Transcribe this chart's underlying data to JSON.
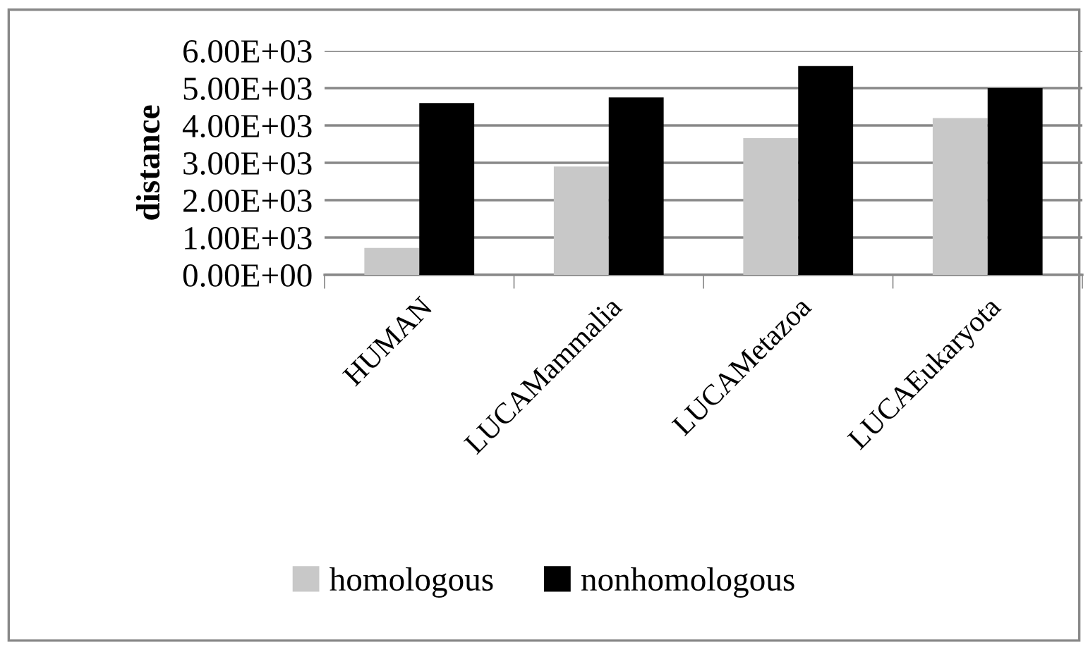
{
  "chart_data": {
    "type": "bar",
    "ylabel": "distance",
    "categories": [
      "HUMAN",
      "LUCAMammalia",
      "LUCAMetazoa",
      "LUCAEukaryota"
    ],
    "series": [
      {
        "name": "homologous",
        "color": "#c8c8c8",
        "values": [
          720,
          2900,
          3660,
          4200
        ]
      },
      {
        "name": "nonhomologous",
        "color": "#000000",
        "values": [
          4600,
          4750,
          5590,
          5000
        ]
      }
    ],
    "ylim": [
      0,
      6000
    ],
    "yticks": [
      {
        "value": 0,
        "label": "0.00E+00"
      },
      {
        "value": 1000,
        "label": "1.00E+03"
      },
      {
        "value": 2000,
        "label": "2.00E+03"
      },
      {
        "value": 3000,
        "label": "3.00E+03"
      },
      {
        "value": 4000,
        "label": "4.00E+03"
      },
      {
        "value": 5000,
        "label": "5.00E+03"
      },
      {
        "value": 6000,
        "label": "6.00E+03"
      }
    ],
    "grid": "y",
    "legend": "bottom"
  }
}
